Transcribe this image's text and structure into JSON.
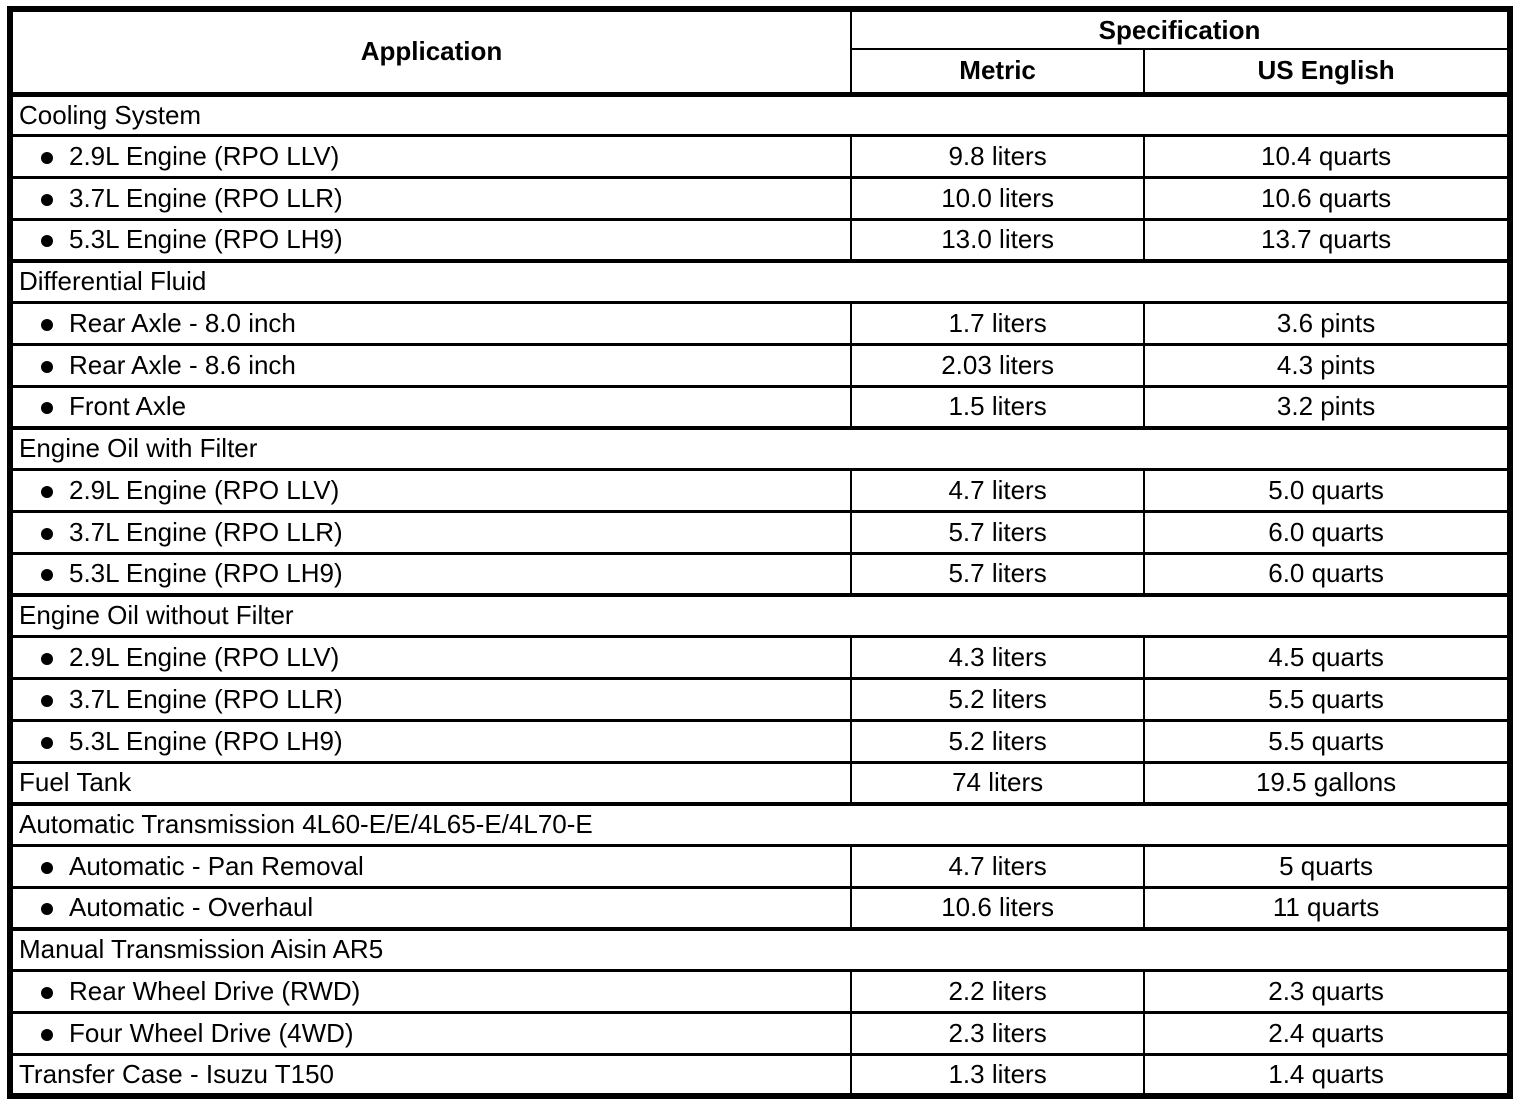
{
  "colors": {
    "background": "#ffffff",
    "text": "#000000",
    "border": "#000000"
  },
  "icons": {
    "bullet": "filled-circle"
  },
  "table": {
    "header": {
      "application": "Application",
      "specification": "Specification",
      "metric": "Metric",
      "us_english": "US English"
    },
    "rows": [
      {
        "type": "section",
        "label": "Cooling System"
      },
      {
        "type": "data",
        "bullet": true,
        "label": "2.9L Engine (RPO LLV)",
        "metric": "9.8 liters",
        "us_english": "10.4 quarts"
      },
      {
        "type": "data",
        "bullet": true,
        "label": "3.7L Engine (RPO LLR)",
        "metric": "10.0 liters",
        "us_english": "10.6 quarts"
      },
      {
        "type": "data",
        "bullet": true,
        "label": "5.3L Engine (RPO LH9)",
        "metric": "13.0 liters",
        "us_english": "13.7 quarts"
      },
      {
        "type": "section",
        "label": "Differential Fluid"
      },
      {
        "type": "data",
        "bullet": true,
        "label": "Rear Axle - 8.0 inch",
        "metric": "1.7 liters",
        "us_english": "3.6 pints"
      },
      {
        "type": "data",
        "bullet": true,
        "label": "Rear Axle - 8.6 inch",
        "metric": "2.03 liters",
        "us_english": "4.3 pints"
      },
      {
        "type": "data",
        "bullet": true,
        "label": "Front Axle",
        "metric": "1.5 liters",
        "us_english": "3.2 pints"
      },
      {
        "type": "section",
        "label": "Engine Oil with Filter"
      },
      {
        "type": "data",
        "bullet": true,
        "label": "2.9L Engine (RPO LLV)",
        "metric": "4.7 liters",
        "us_english": "5.0 quarts"
      },
      {
        "type": "data",
        "bullet": true,
        "label": "3.7L Engine (RPO LLR)",
        "metric": "5.7 liters",
        "us_english": "6.0 quarts"
      },
      {
        "type": "data",
        "bullet": true,
        "label": "5.3L Engine (RPO LH9)",
        "metric": "5.7 liters",
        "us_english": "6.0 quarts"
      },
      {
        "type": "section",
        "label": "Engine Oil without Filter"
      },
      {
        "type": "data",
        "bullet": true,
        "label": "2.9L Engine (RPO LLV)",
        "metric": "4.3 liters",
        "us_english": "4.5 quarts"
      },
      {
        "type": "data",
        "bullet": true,
        "label": "3.7L Engine (RPO LLR)",
        "metric": "5.2 liters",
        "us_english": "5.5 quarts"
      },
      {
        "type": "data",
        "bullet": true,
        "label": "5.3L Engine (RPO LH9)",
        "metric": "5.2 liters",
        "us_english": "5.5 quarts"
      },
      {
        "type": "data",
        "bullet": false,
        "label": "Fuel Tank",
        "metric": "74 liters",
        "us_english": "19.5 gallons"
      },
      {
        "type": "section",
        "label": "Automatic Transmission 4L60-E/E/4L65-E/4L70-E"
      },
      {
        "type": "data",
        "bullet": true,
        "label": "Automatic - Pan Removal",
        "metric": "4.7 liters",
        "us_english": "5 quarts"
      },
      {
        "type": "data",
        "bullet": true,
        "label": "Automatic - Overhaul",
        "metric": "10.6 liters",
        "us_english": "11 quarts"
      },
      {
        "type": "section",
        "label": "Manual Transmission Aisin AR5"
      },
      {
        "type": "data",
        "bullet": true,
        "label": "Rear Wheel Drive (RWD)",
        "metric": "2.2 liters",
        "us_english": "2.3 quarts"
      },
      {
        "type": "data",
        "bullet": true,
        "label": "Four Wheel Drive (4WD)",
        "metric": "2.3 liters",
        "us_english": "2.4 quarts"
      },
      {
        "type": "data",
        "bullet": false,
        "label": "Transfer Case - Isuzu T150",
        "metric": "1.3 liters",
        "us_english": "1.4 quarts"
      }
    ]
  }
}
